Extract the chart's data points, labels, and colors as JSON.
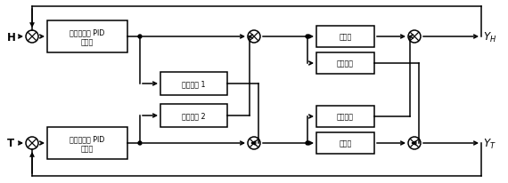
{
  "bg_color": "#ffffff",
  "pid_label": "自适应模糊 PID\n控制器",
  "ff1_label": "前馈补偼 1",
  "ff2_label": "前馈补偼 2",
  "box1_label": "加湿器",
  "box2_label": "耦合通道",
  "box3_label": "耦合通道",
  "box4_label": "加燭器",
  "H_label": "H",
  "T_label": "T",
  "YH_label": "Y_H",
  "YT_label": "Y_T",
  "figsize": [
    5.7,
    2.07
  ],
  "dpi": 100
}
